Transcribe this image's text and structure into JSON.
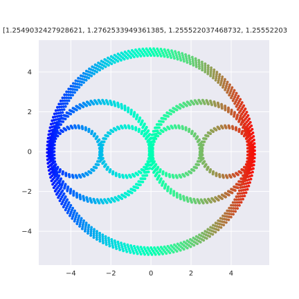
{
  "chart_data": {
    "type": "scatter",
    "title": "[1.2549032427928621, 1.2762533949361385, 1.255522037468732, 1.25552203",
    "xlabel": "",
    "ylabel": "",
    "xlim": [
      -5.6,
      5.9
    ],
    "ylim": [
      -5.7,
      5.6
    ],
    "xticks": [
      -4,
      -2,
      0,
      2,
      4
    ],
    "yticks": [
      -4,
      -2,
      0,
      2,
      4
    ],
    "grid": true,
    "colormap": "rainbow",
    "background": "#eaeaf2",
    "shapes": [
      {
        "kind": "circle",
        "cx": 0,
        "cy": 0,
        "r": 5.0,
        "band": 0.35,
        "count": 900
      },
      {
        "kind": "circle",
        "cx": -2.5,
        "cy": 0,
        "r": 2.5,
        "band": 0.18,
        "count": 420
      },
      {
        "kind": "circle",
        "cx": 2.5,
        "cy": 0,
        "r": 2.5,
        "band": 0.18,
        "count": 420
      },
      {
        "kind": "circle",
        "cx": -3.75,
        "cy": 0,
        "r": 1.25,
        "band": 0.12,
        "count": 220
      },
      {
        "kind": "circle",
        "cx": -1.25,
        "cy": 0,
        "r": 1.25,
        "band": 0.12,
        "count": 220
      },
      {
        "kind": "circle",
        "cx": 1.25,
        "cy": 0,
        "r": 1.25,
        "band": 0.12,
        "count": 220
      },
      {
        "kind": "circle",
        "cx": 3.75,
        "cy": 0,
        "r": 1.25,
        "band": 0.12,
        "count": 220
      }
    ]
  }
}
